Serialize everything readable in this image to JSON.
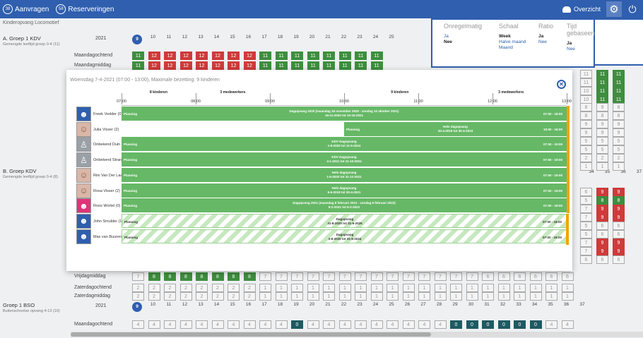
{
  "topbar": {
    "aanvragen": {
      "count": "38",
      "label": "Aanvragen"
    },
    "reserveringen": {
      "count": "58",
      "label": "Reserveringen"
    },
    "overzicht_label": "Overzicht",
    "gear_icon": "gear-icon",
    "power_icon": "power-icon"
  },
  "sidebar": {
    "org": "Kinderopvang Locomotief",
    "groups": [
      {
        "name": "A. Groep 1 KDV",
        "sub": "Gemengde leeftijd groep 0-4 (11)"
      },
      {
        "name": "B. Groep KDV",
        "sub": "Gemengde leeftijd groep 0-4 (8)"
      },
      {
        "name": "Groep 1 BSO",
        "sub": "Buitenschoolse opvang 4-13 (10)"
      }
    ]
  },
  "grid": {
    "year": "2021",
    "weeks_top": [
      "9",
      "10",
      "11",
      "12",
      "13",
      "14",
      "15",
      "16",
      "17",
      "18",
      "19",
      "20",
      "21",
      "22",
      "23",
      "24",
      "25"
    ],
    "weeks_bottom": [
      "9",
      "10",
      "11",
      "12",
      "13",
      "14",
      "15",
      "16",
      "17",
      "18",
      "19",
      "20",
      "21",
      "22",
      "23",
      "24",
      "25",
      "26",
      "27",
      "28",
      "29",
      "30",
      "31",
      "32",
      "33",
      "34",
      "35",
      "36",
      "37"
    ],
    "weeks_mid": [
      "34",
      "35",
      "36",
      "37"
    ],
    "rows_top": [
      {
        "label": "Maandagochtend",
        "cells": [
          "11",
          "12",
          "12",
          "12",
          "12",
          "12",
          "12",
          "12",
          "11",
          "11",
          "11",
          "11",
          "11",
          "11",
          "11",
          "11"
        ]
      },
      {
        "label": "Maandagmiddag",
        "cells": [
          "11",
          "12",
          "12",
          "12",
          "12",
          "12",
          "12",
          "12",
          "11",
          "11",
          "11",
          "11",
          "11",
          "11",
          "11",
          "11"
        ]
      }
    ],
    "rows_bottom": [
      {
        "label": "Vrijdagmiddag",
        "cells": [
          "7",
          "8",
          "8",
          "8",
          "8",
          "8",
          "8",
          "8",
          "7",
          "7",
          "7",
          "7",
          "7",
          "7",
          "7",
          "7",
          "7",
          "7",
          "7",
          "7",
          "7",
          "7",
          "6",
          "6",
          "6",
          "6",
          "6",
          "6"
        ]
      },
      {
        "label": "Zaterdagochtend",
        "cells": [
          "2",
          "2",
          "2",
          "2",
          "2",
          "2",
          "2",
          "2",
          "1",
          "1",
          "1",
          "1",
          "1",
          "1",
          "1",
          "1",
          "1",
          "1",
          "1",
          "1",
          "1",
          "1",
          "1",
          "1",
          "1",
          "1",
          "1",
          "1"
        ]
      },
      {
        "label": "Zaterdagmiddag",
        "cells": [
          "2",
          "2",
          "2",
          "2",
          "2",
          "2",
          "2",
          "2",
          "1",
          "1",
          "1",
          "1",
          "1",
          "1",
          "1",
          "1",
          "1",
          "1",
          "1",
          "1",
          "1",
          "1",
          "1",
          "1",
          "1",
          "1",
          "1",
          "1"
        ]
      }
    ],
    "row_bso": {
      "label": "Maandagochtend",
      "cells": [
        "4",
        "4",
        "4",
        "4",
        "4",
        "4",
        "4",
        "4",
        "4",
        "4",
        "0",
        "4",
        "4",
        "4",
        "4",
        "4",
        "4",
        "4",
        "4",
        "4",
        "0",
        "0",
        "0",
        "0",
        "0",
        "0",
        "4",
        "4"
      ]
    },
    "right_col": [
      [
        "11",
        "11",
        "11"
      ],
      [
        "11",
        "11",
        "11"
      ],
      [
        "10",
        "11",
        "11"
      ],
      [
        "10",
        "11",
        "11"
      ],
      [
        "8",
        "9",
        "8"
      ],
      [
        "8",
        "8",
        "8"
      ],
      [
        "9",
        "9",
        "9"
      ],
      [
        "9",
        "9",
        "9"
      ],
      [
        "5",
        "5",
        "5"
      ],
      [
        "5",
        "5",
        "5"
      ],
      [
        "2",
        "2",
        "2"
      ],
      [
        "1",
        "1",
        "1"
      ],
      [
        "6",
        "9",
        "9"
      ],
      [
        "5",
        "8",
        "8"
      ],
      [
        "7",
        "9",
        "9"
      ],
      [
        "7",
        "9",
        "9"
      ],
      [
        "5",
        "6",
        "6"
      ],
      [
        "5",
        "6",
        "6"
      ],
      [
        "7",
        "9",
        "9"
      ],
      [
        "7",
        "9",
        "9"
      ],
      [
        "6",
        "6",
        "6"
      ]
    ]
  },
  "top_panel": {
    "onregelmatig": {
      "header": "Onregelmatig",
      "v1": "Ja",
      "v2": "Nee"
    },
    "schaal": {
      "header": "Schaal",
      "v1": "Week",
      "v2": "Halve maand",
      "v3": "Maand"
    },
    "ratio": {
      "header": "Ratio",
      "v1": "Ja",
      "v2": "Nee"
    },
    "tijd": {
      "header": "Tijd gebaseerd",
      "v1": "Ja",
      "v2": "Nee"
    }
  },
  "modal": {
    "title": "Woensdag 7-4-2021 (07:00 - 13:00), Maximale bezetting: 9 kinderen",
    "captions": [
      {
        "text": "8 kinderen",
        "at": "07:30"
      },
      {
        "text": "3 medewerkers",
        "at": "08:30"
      },
      {
        "text": "9 kinderen",
        "at": "10:45"
      },
      {
        "text": "3 medewerkers",
        "at": "12:15"
      }
    ],
    "ticks": [
      "07:00",
      "08:00",
      "09:00",
      "10:00",
      "11:00",
      "12:00",
      "13:00"
    ],
    "rows": [
      {
        "name": "Freek Vedder (0)",
        "avatar": "blue",
        "start": "07:00",
        "end": "13:00",
        "striped": false,
        "plan": "Planning",
        "desc1": "Dagopvang 2020 (maandag 16 november 2020 - zondag 10 oktober 2021)",
        "desc2": "16-11-2020 tot 10-10-2021",
        "time": "07:00 - 18:00"
      },
      {
        "name": "Julia Visser (2)",
        "avatar": "photo",
        "start": "10:00",
        "end": "13:00",
        "striped": false,
        "plan": "Planning",
        "desc1": "Hele dagopvang",
        "desc2": "30-4-2019 tot 30-4-2023",
        "time": "10:00 - 16:00"
      },
      {
        "name": "Onbekend Duin (0)",
        "avatar": "grey",
        "start": "07:00",
        "end": "13:00",
        "striped": false,
        "plan": "Planning",
        "desc1": "KDV Dagopvang",
        "desc2": "1-9-2020 tot 11-5-2024",
        "time": "07:00 - 19:00"
      },
      {
        "name": "Onbekend Strand (0)",
        "avatar": "grey",
        "start": "07:00",
        "end": "13:00",
        "striped": false,
        "plan": "Planning",
        "desc1": "KDV Dagopvang",
        "desc2": "4-1-2021 tot 31-10-2024",
        "time": "07:00 - 19:00"
      },
      {
        "name": "Rini Van Der Laan (0)",
        "avatar": "photo",
        "start": "07:00",
        "end": "13:00",
        "striped": false,
        "plan": "Planning",
        "desc1": "Hele dagopvang",
        "desc2": "1-5-2020 tot 31-12-2021",
        "time": "07:00 - 19:00"
      },
      {
        "name": "Rosa Visser (2)",
        "avatar": "photo",
        "start": "07:00",
        "end": "13:00",
        "striped": false,
        "plan": "Planning",
        "desc1": "Hele dagopvang",
        "desc2": "6-5-2019 tot 30-4-2021",
        "time": "07:00 - 19:00"
      },
      {
        "name": "Roos Wortel (0)",
        "avatar": "pink",
        "start": "07:00",
        "end": "13:00",
        "striped": false,
        "plan": "Planning",
        "desc1": "Dagopvang 2021 (maandag 8 februari 2021 - zondag 6 februari 2022)",
        "desc2": "8-2-2021 tot 6-2-2022",
        "time": "07:00 - 18:00"
      },
      {
        "name": "John Smulder (1)",
        "avatar": "blue",
        "start": "07:00",
        "end": "13:00",
        "striped": true,
        "plan": "Planning",
        "desc1": "Dagopvang",
        "desc2": "31-8-2020 tot 31-5-2025",
        "time": "07:00 - 18:00"
      },
      {
        "name": "Max van Buuren (0)",
        "avatar": "blue",
        "start": "07:00",
        "end": "13:00",
        "striped": true,
        "plan": "Planning",
        "desc1": "Dagopvang",
        "desc2": "3-8-2020 tot 31-5-2024",
        "time": "07:00 - 18:00"
      }
    ]
  }
}
